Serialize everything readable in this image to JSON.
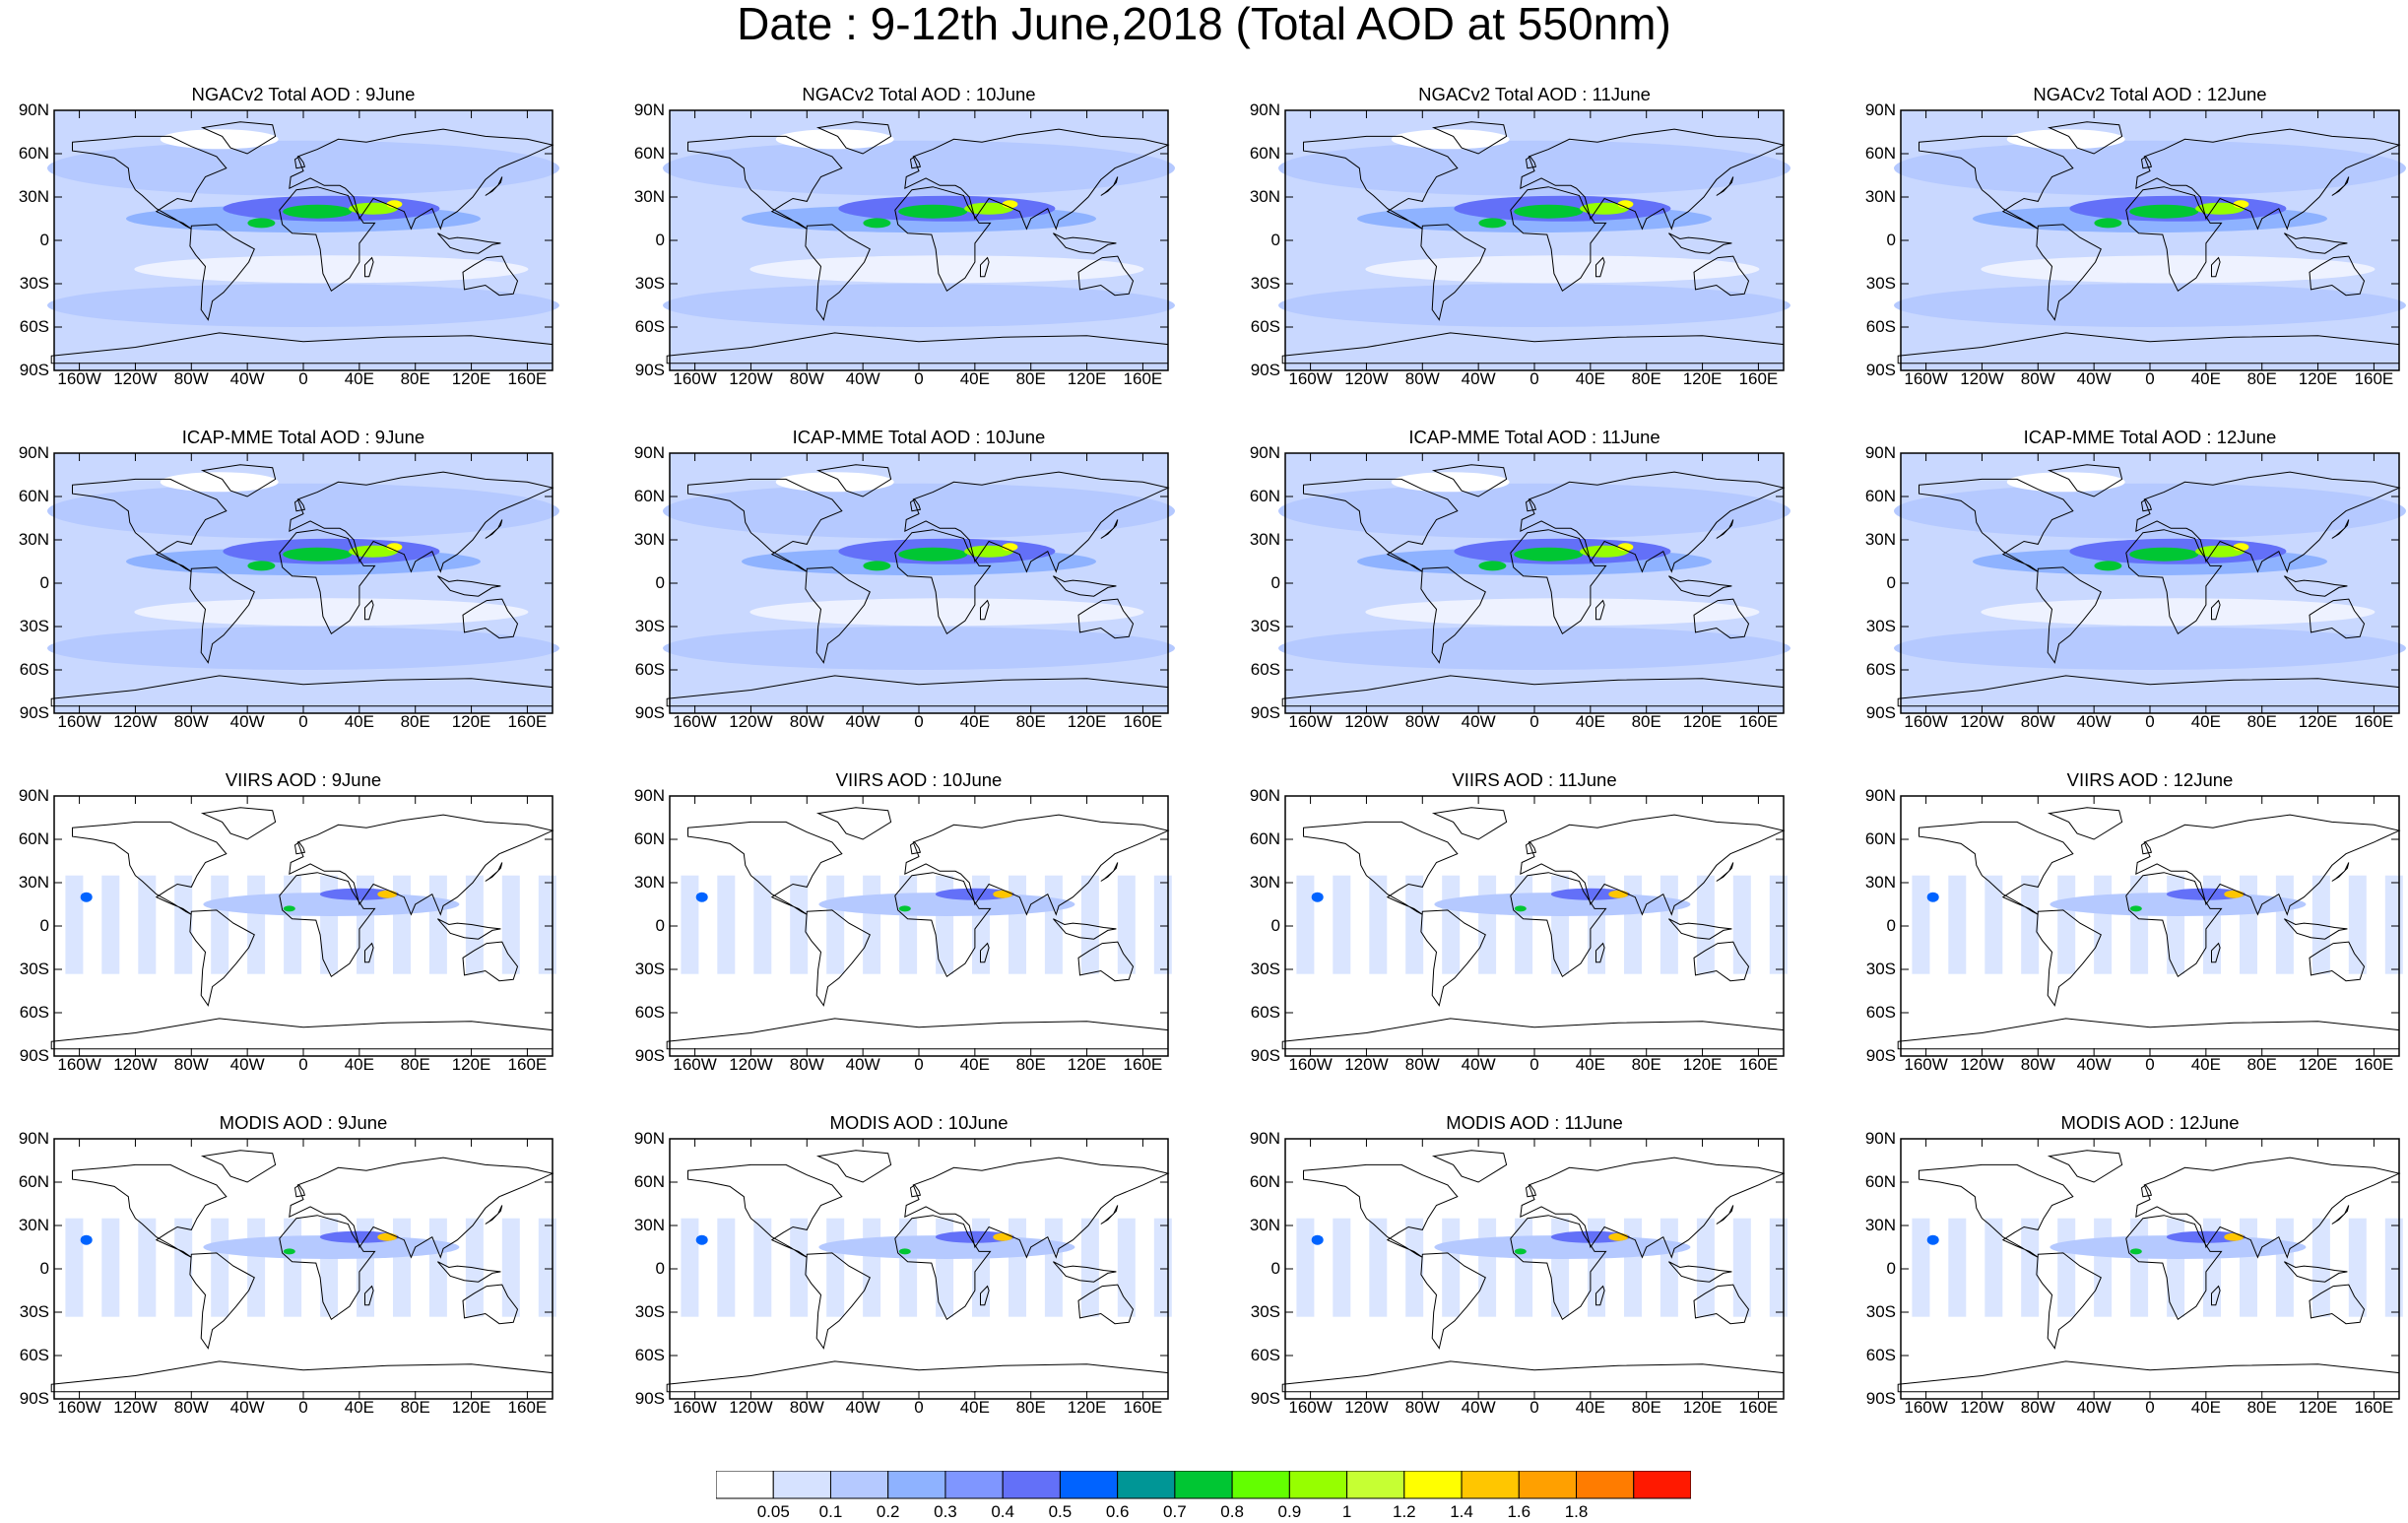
{
  "title": "Date : 9-12th June,2018 (Total AOD at 550nm)",
  "lat_labels": [
    "90N",
    "60N",
    "30N",
    "0",
    "30S",
    "60S",
    "90S"
  ],
  "lon_labels": [
    "160W",
    "120W",
    "80W",
    "40W",
    "0",
    "40E",
    "80E",
    "120E",
    "160E"
  ],
  "rows": [
    {
      "model": "NGACv2",
      "titles": [
        "NGACv2 Total AOD : 9June",
        "NGACv2 Total AOD : 10June",
        "NGACv2 Total AOD : 11June",
        "NGACv2 Total AOD : 12June"
      ]
    },
    {
      "model": "ICAP-MME",
      "titles": [
        "ICAP-MME Total AOD : 9June",
        "ICAP-MME Total AOD : 10June",
        "ICAP-MME Total AOD : 11June",
        "ICAP-MME Total AOD : 12June"
      ]
    },
    {
      "model": "VIIRS",
      "titles": [
        "VIIRS AOD : 9June",
        "VIIRS AOD : 10June",
        "VIIRS AOD : 11June",
        "VIIRS AOD : 12June"
      ]
    },
    {
      "model": "MODIS",
      "titles": [
        "MODIS AOD : 9June",
        "MODIS AOD : 10June",
        "MODIS AOD : 11June",
        "MODIS AOD : 12June"
      ]
    }
  ],
  "colorbar": {
    "labels": [
      "0.05",
      "0.1",
      "0.2",
      "0.3",
      "0.4",
      "0.5",
      "0.6",
      "0.7",
      "0.8",
      "0.9",
      "1",
      "1.2",
      "1.4",
      "1.6",
      "1.8"
    ],
    "colors": [
      "#ffffff",
      "#d6e2ff",
      "#b5c9ff",
      "#8eb2ff",
      "#7f96ff",
      "#6370f8",
      "#0063ff",
      "#009696",
      "#00c633",
      "#63ff00",
      "#96ff00",
      "#c6ff33",
      "#ffff00",
      "#ffc600",
      "#ffa000",
      "#ff7c00",
      "#ff1900"
    ]
  }
}
